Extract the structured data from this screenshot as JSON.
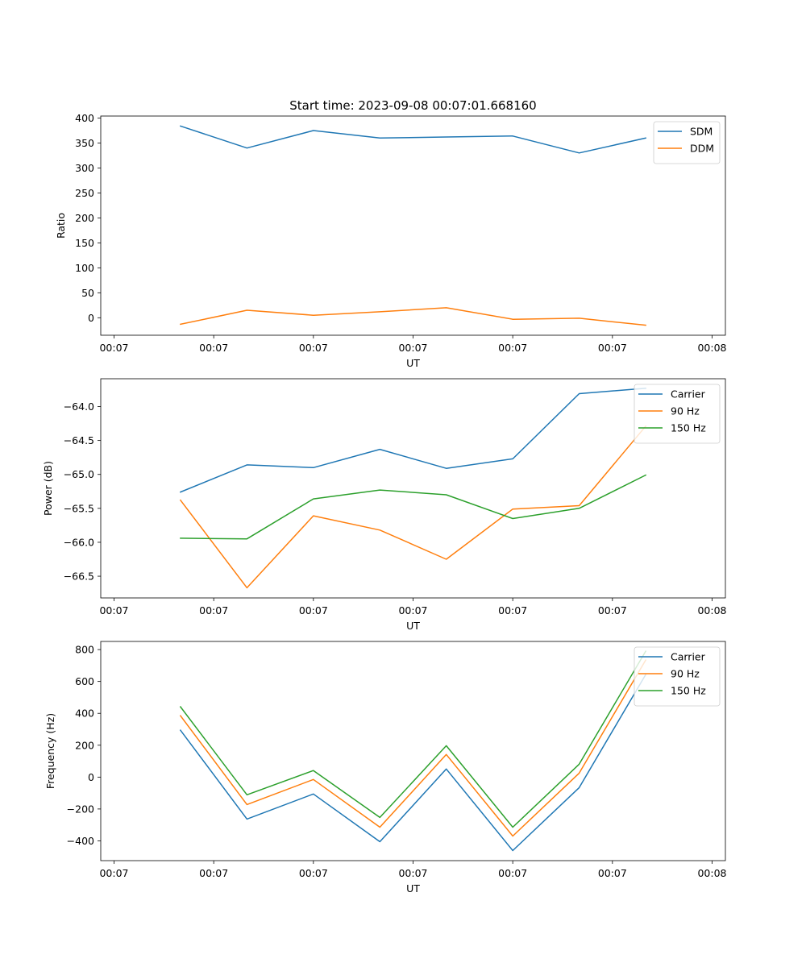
{
  "figure": {
    "title": "Start time: 2023-09-08 00:07:01.668160"
  },
  "chart_data": [
    {
      "type": "line",
      "title": "Start time: 2023-09-08 00:07:01.668160",
      "xlabel": "UT",
      "ylabel": "Ratio",
      "x": [
        1,
        2,
        3,
        4,
        5,
        6,
        7,
        8
      ],
      "xlim": [
        -0.2,
        9.2
      ],
      "x_ticks": [
        0,
        1.5,
        3,
        4.5,
        6,
        7.5,
        9
      ],
      "x_tick_labels": [
        "00:07",
        "00:07",
        "00:07",
        "00:07",
        "00:07",
        "00:07",
        "00:08"
      ],
      "ylim": [
        -35,
        404
      ],
      "y_ticks": [
        0,
        50,
        100,
        150,
        200,
        250,
        300,
        350,
        400
      ],
      "y_tick_labels": [
        "0",
        "50",
        "100",
        "150",
        "200",
        "250",
        "300",
        "350",
        "400"
      ],
      "grid": false,
      "legend_position": "top-right",
      "series": [
        {
          "name": "SDM",
          "color": "#1f77b4",
          "values": [
            384,
            340,
            375,
            360,
            362,
            364,
            330,
            360
          ]
        },
        {
          "name": "DDM",
          "color": "#ff7f0e",
          "values": [
            -13,
            15,
            5,
            12,
            20,
            -3,
            -1,
            -15
          ]
        }
      ]
    },
    {
      "type": "line",
      "title": "",
      "xlabel": "UT",
      "ylabel": "Power (dB)",
      "x": [
        1,
        2,
        3,
        4,
        5,
        6,
        7,
        8
      ],
      "xlim": [
        -0.2,
        9.2
      ],
      "x_ticks": [
        0,
        1.5,
        3,
        4.5,
        6,
        7.5,
        9
      ],
      "x_tick_labels": [
        "00:07",
        "00:07",
        "00:07",
        "00:07",
        "00:07",
        "00:07",
        "00:08"
      ],
      "ylim": [
        -66.82,
        -63.59
      ],
      "y_ticks": [
        -66.5,
        -66.0,
        -65.5,
        -65.0,
        -64.5,
        -64.0
      ],
      "y_tick_labels": [
        "−66.5",
        "−66.0",
        "−65.5",
        "−65.0",
        "−64.5",
        "−64.0"
      ],
      "grid": false,
      "legend_position": "top-right",
      "series": [
        {
          "name": "Carrier",
          "color": "#1f77b4",
          "values": [
            -65.26,
            -64.86,
            -64.9,
            -64.63,
            -64.91,
            -64.77,
            -63.81,
            -63.73
          ]
        },
        {
          "name": "90 Hz",
          "color": "#ff7f0e",
          "values": [
            -65.38,
            -66.67,
            -65.61,
            -65.82,
            -66.25,
            -65.51,
            -65.46,
            -64.29
          ]
        },
        {
          "name": "150 Hz",
          "color": "#2ca02c",
          "values": [
            -65.94,
            -65.95,
            -65.36,
            -65.23,
            -65.3,
            -65.65,
            -65.5,
            -65.01
          ]
        }
      ]
    },
    {
      "type": "line",
      "title": "",
      "xlabel": "UT",
      "ylabel": "Frequency (Hz)",
      "x": [
        1,
        2,
        3,
        4,
        5,
        6,
        7,
        8
      ],
      "xlim": [
        -0.2,
        9.2
      ],
      "x_ticks": [
        0,
        1.5,
        3,
        4.5,
        6,
        7.5,
        9
      ],
      "x_tick_labels": [
        "00:07",
        "00:07",
        "00:07",
        "00:07",
        "00:07",
        "00:07",
        "00:08"
      ],
      "ylim": [
        -524,
        851
      ],
      "y_ticks": [
        -400,
        -200,
        0,
        200,
        400,
        600,
        800
      ],
      "y_tick_labels": [
        "−400",
        "−200",
        "0",
        "200",
        "400",
        "600",
        "800"
      ],
      "grid": false,
      "legend_position": "top-right",
      "series": [
        {
          "name": "Carrier",
          "color": "#1f77b4",
          "values": [
            294,
            -263,
            -106,
            -405,
            51,
            -461,
            -66,
            643
          ]
        },
        {
          "name": "90 Hz",
          "color": "#ff7f0e",
          "values": [
            385,
            -172,
            -15,
            -314,
            142,
            -370,
            25,
            734
          ]
        },
        {
          "name": "150 Hz",
          "color": "#2ca02c",
          "values": [
            441,
            -111,
            41,
            -253,
            197,
            -314,
            81,
            790
          ]
        }
      ]
    }
  ]
}
